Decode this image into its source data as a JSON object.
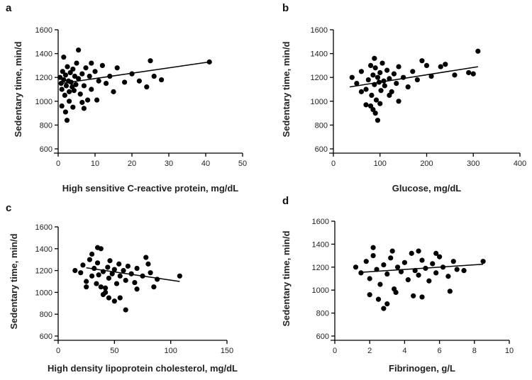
{
  "chart_data": [
    {
      "panel": "a",
      "type": "scatter",
      "xlabel": "High sensitive C-reactive protein, mg/dL",
      "ylabel": "Sedentary time, min/d",
      "xlim": [
        0,
        50
      ],
      "ylim": [
        600,
        1600
      ],
      "xticks": [
        0,
        10,
        20,
        30,
        40,
        50
      ],
      "yticks": [
        600,
        800,
        1000,
        1200,
        1400,
        1600
      ],
      "fit_line": [
        [
          1,
          1150
        ],
        [
          41,
          1330
        ]
      ],
      "points": [
        [
          0.5,
          1200
        ],
        [
          0.8,
          1150
        ],
        [
          1,
          1100
        ],
        [
          1.2,
          1250
        ],
        [
          1.5,
          1180
        ],
        [
          1.8,
          1050
        ],
        [
          2,
          1220
        ],
        [
          2.2,
          1130
        ],
        [
          2.5,
          1290
        ],
        [
          2.8,
          1170
        ],
        [
          3,
          1080
        ],
        [
          3.3,
          1240
        ],
        [
          3.5,
          1160
        ],
        [
          3.8,
          1120
        ],
        [
          4,
          1270
        ],
        [
          4.3,
          1090
        ],
        [
          4.5,
          1210
        ],
        [
          4.8,
          1140
        ],
        [
          5,
          1320
        ],
        [
          5.5,
          1190
        ],
        [
          6,
          1060
        ],
        [
          6.5,
          1230
        ],
        [
          7,
          1130
        ],
        [
          7.5,
          1280
        ],
        [
          8,
          1010
        ],
        [
          8.5,
          1210
        ],
        [
          9,
          1100
        ],
        [
          10,
          1250
        ],
        [
          11,
          1170
        ],
        [
          12,
          1300
        ],
        [
          13,
          1150
        ],
        [
          14,
          1210
        ],
        [
          15,
          1080
        ],
        [
          16,
          1280
        ],
        [
          18,
          1160
        ],
        [
          20,
          1230
        ],
        [
          22,
          1170
        ],
        [
          24,
          1120
        ],
        [
          25,
          1340
        ],
        [
          26,
          1210
        ],
        [
          28,
          1180
        ],
        [
          41,
          1330
        ],
        [
          1,
          960
        ],
        [
          2,
          910
        ],
        [
          2.4,
          840
        ],
        [
          1.5,
          1370
        ],
        [
          5.5,
          1430
        ],
        [
          3,
          1000
        ],
        [
          4,
          950
        ],
        [
          6.5,
          990
        ],
        [
          7,
          940
        ],
        [
          9,
          1320
        ],
        [
          10.5,
          1010
        ]
      ]
    },
    {
      "panel": "b",
      "type": "scatter",
      "xlabel": "Glucose, mg/dL",
      "ylabel": "Sedentary time, min/d",
      "xlim": [
        0,
        400
      ],
      "ylim": [
        600,
        1600
      ],
      "xticks": [
        0,
        100,
        200,
        300,
        400
      ],
      "yticks": [
        600,
        800,
        1000,
        1200,
        1400,
        1600
      ],
      "fit_line": [
        [
          35,
          1120
        ],
        [
          310,
          1290
        ]
      ],
      "points": [
        [
          40,
          1200
        ],
        [
          50,
          1150
        ],
        [
          60,
          1250
        ],
        [
          70,
          1100
        ],
        [
          75,
          1180
        ],
        [
          80,
          1300
        ],
        [
          82,
          1050
        ],
        [
          85,
          1220
        ],
        [
          88,
          1140
        ],
        [
          90,
          1280
        ],
        [
          92,
          1010
        ],
        [
          95,
          1200
        ],
        [
          98,
          1160
        ],
        [
          100,
          1240
        ],
        [
          102,
          1090
        ],
        [
          105,
          1320
        ],
        [
          108,
          1170
        ],
        [
          110,
          1130
        ],
        [
          115,
          1260
        ],
        [
          120,
          1190
        ],
        [
          125,
          1080
        ],
        [
          130,
          1230
        ],
        [
          135,
          1150
        ],
        [
          140,
          1290
        ],
        [
          150,
          1200
        ],
        [
          160,
          1120
        ],
        [
          170,
          1250
        ],
        [
          180,
          1180
        ],
        [
          190,
          1340
        ],
        [
          200,
          1300
        ],
        [
          210,
          1210
        ],
        [
          230,
          1290
        ],
        [
          240,
          1310
        ],
        [
          260,
          1220
        ],
        [
          290,
          1240
        ],
        [
          300,
          1230
        ],
        [
          310,
          1420
        ],
        [
          85,
          930
        ],
        [
          90,
          900
        ],
        [
          95,
          840
        ],
        [
          80,
          960
        ],
        [
          100,
          980
        ],
        [
          88,
          1360
        ],
        [
          140,
          1000
        ],
        [
          120,
          1050
        ],
        [
          70,
          970
        ],
        [
          60,
          1080
        ]
      ]
    },
    {
      "panel": "c",
      "type": "scatter",
      "xlabel": "High density lipoprotein cholesterol, mg/dL",
      "ylabel": "Sedentary time, min/d",
      "xlim": [
        0,
        150
      ],
      "ylim": [
        600,
        1600
      ],
      "xticks": [
        0,
        50,
        100,
        150
      ],
      "yticks": [
        600,
        800,
        1000,
        1200,
        1400,
        1600
      ],
      "fit_line": [
        [
          25,
          1225
        ],
        [
          108,
          1100
        ]
      ],
      "points": [
        [
          15,
          1200
        ],
        [
          20,
          1180
        ],
        [
          22,
          1250
        ],
        [
          25,
          1100
        ],
        [
          28,
          1300
        ],
        [
          30,
          1150
        ],
        [
          32,
          1220
        ],
        [
          34,
          1080
        ],
        [
          35,
          1270
        ],
        [
          36,
          1160
        ],
        [
          38,
          1400
        ],
        [
          40,
          1190
        ],
        [
          42,
          1040
        ],
        [
          44,
          1230
        ],
        [
          45,
          1130
        ],
        [
          46,
          1290
        ],
        [
          48,
          1170
        ],
        [
          50,
          1210
        ],
        [
          52,
          1080
        ],
        [
          54,
          1260
        ],
        [
          55,
          1150
        ],
        [
          58,
          1200
        ],
        [
          60,
          1110
        ],
        [
          62,
          1240
        ],
        [
          65,
          1170
        ],
        [
          68,
          1090
        ],
        [
          70,
          1220
        ],
        [
          75,
          1150
        ],
        [
          78,
          1320
        ],
        [
          80,
          1260
        ],
        [
          82,
          1180
        ],
        [
          85,
          1050
        ],
        [
          88,
          1120
        ],
        [
          108,
          1150
        ],
        [
          30,
          1350
        ],
        [
          35,
          1410
        ],
        [
          40,
          980
        ],
        [
          45,
          950
        ],
        [
          50,
          920
        ],
        [
          55,
          950
        ],
        [
          60,
          840
        ],
        [
          42,
          1000
        ],
        [
          38,
          1050
        ],
        [
          25,
          1050
        ],
        [
          70,
          1030
        ]
      ]
    },
    {
      "panel": "d",
      "type": "scatter",
      "xlabel": "Fibrinogen, g/L",
      "ylabel": "Sedentary time, min/d",
      "xlim": [
        0,
        10
      ],
      "ylim": [
        600,
        1600
      ],
      "xticks": [
        0,
        2,
        4,
        6,
        8,
        10
      ],
      "yticks": [
        600,
        800,
        1000,
        1200,
        1400,
        1600
      ],
      "fit_line": [
        [
          1.5,
          1155
        ],
        [
          8.5,
          1225
        ]
      ],
      "points": [
        [
          1.2,
          1200
        ],
        [
          1.5,
          1150
        ],
        [
          1.8,
          1250
        ],
        [
          2,
          1100
        ],
        [
          2.2,
          1300
        ],
        [
          2.4,
          1180
        ],
        [
          2.6,
          1050
        ],
        [
          2.8,
          1220
        ],
        [
          3,
          1140
        ],
        [
          3.2,
          1280
        ],
        [
          3.4,
          1010
        ],
        [
          3.6,
          1200
        ],
        [
          3.8,
          1160
        ],
        [
          4,
          1240
        ],
        [
          4.2,
          1090
        ],
        [
          4.4,
          1320
        ],
        [
          4.6,
          1170
        ],
        [
          4.8,
          1130
        ],
        [
          5,
          1260
        ],
        [
          5.2,
          1190
        ],
        [
          5.4,
          1080
        ],
        [
          5.6,
          1230
        ],
        [
          5.8,
          1150
        ],
        [
          6,
          1290
        ],
        [
          6.2,
          1200
        ],
        [
          6.5,
          1120
        ],
        [
          6.8,
          1250
        ],
        [
          7,
          1180
        ],
        [
          7.4,
          1170
        ],
        [
          8.5,
          1250
        ],
        [
          2.8,
          840
        ],
        [
          3,
          880
        ],
        [
          2.5,
          920
        ],
        [
          2,
          960
        ],
        [
          3.5,
          980
        ],
        [
          4.5,
          950
        ],
        [
          5,
          940
        ],
        [
          6.6,
          990
        ],
        [
          2.2,
          1370
        ],
        [
          3.3,
          1340
        ],
        [
          4.8,
          1340
        ],
        [
          5.8,
          1320
        ]
      ]
    }
  ]
}
